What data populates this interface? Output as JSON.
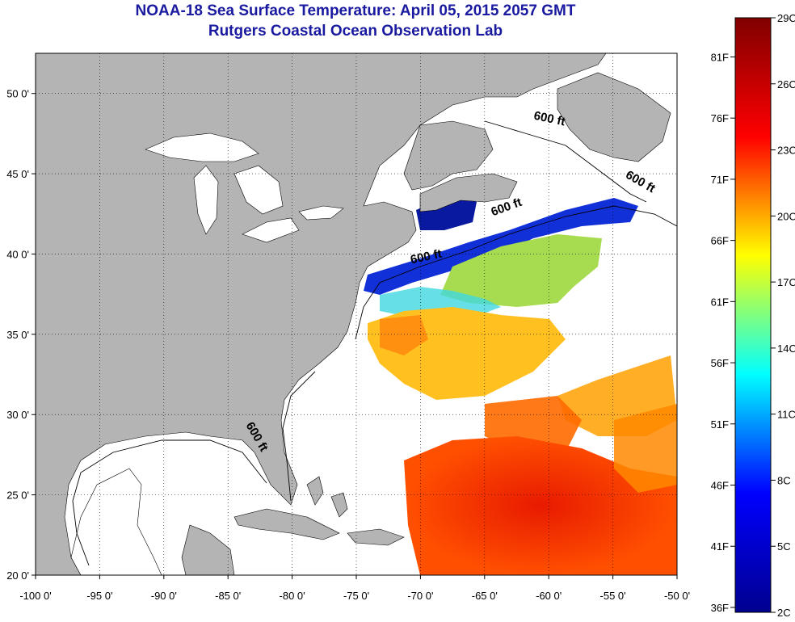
{
  "title": "NOAA-18 Sea Surface Temperature:  April 05, 2015 2057 GMT",
  "subtitle": "Rutgers Coastal Ocean Observation Lab",
  "map": {
    "lon_range": [
      -100,
      -50
    ],
    "lat_range": [
      20,
      52.5
    ],
    "lon_ticks": [
      {
        "value": -100,
        "label": "-100 0'"
      },
      {
        "value": -95,
        "label": "-95 0'"
      },
      {
        "value": -90,
        "label": "-90 0'"
      },
      {
        "value": -85,
        "label": "-85 0'"
      },
      {
        "value": -80,
        "label": "-80 0'"
      },
      {
        "value": -75,
        "label": "-75 0'"
      },
      {
        "value": -70,
        "label": "-70 0'"
      },
      {
        "value": -65,
        "label": "-65 0'"
      },
      {
        "value": -60,
        "label": "-60 0'"
      },
      {
        "value": -55,
        "label": "-55 0'"
      },
      {
        "value": -50,
        "label": "-50 0'"
      }
    ],
    "lat_ticks": [
      {
        "value": 20,
        "label": "20 0'"
      },
      {
        "value": 25,
        "label": "25 0'"
      },
      {
        "value": 30,
        "label": "30 0'"
      },
      {
        "value": 35,
        "label": "35 0'"
      },
      {
        "value": 40,
        "label": "40 0'"
      },
      {
        "value": 45,
        "label": "45 0'"
      },
      {
        "value": 50,
        "label": "50 0'"
      }
    ],
    "grid": "dotted",
    "land_color": "#b4b4b4",
    "isobath_annotations": [
      {
        "text": "600 ft",
        "lon": -60,
        "lat": 48.2,
        "rotate": 12
      },
      {
        "text": "600 ft",
        "lon": -53,
        "lat": 44.3,
        "rotate": 30
      },
      {
        "text": "600 ft",
        "lon": -63.2,
        "lat": 42.7,
        "rotate": -20
      },
      {
        "text": "600 ft",
        "lon": -69.5,
        "lat": 39.6,
        "rotate": -12
      },
      {
        "text": "600 ft",
        "lon": -83,
        "lat": 28.5,
        "rotate": 60
      }
    ]
  },
  "colorbar": {
    "celsius_labels": [
      {
        "value": 2,
        "label": "2C"
      },
      {
        "value": 5,
        "label": "5C"
      },
      {
        "value": 8,
        "label": "8C"
      },
      {
        "value": 11,
        "label": "11C"
      },
      {
        "value": 14,
        "label": "14C"
      },
      {
        "value": 17,
        "label": "17C"
      },
      {
        "value": 20,
        "label": "20C"
      },
      {
        "value": 23,
        "label": "23C"
      },
      {
        "value": 26,
        "label": "26C"
      },
      {
        "value": 29,
        "label": "29C"
      }
    ],
    "fahrenheit_labels": [
      {
        "value": 36,
        "label": "36F"
      },
      {
        "value": 41,
        "label": "41F"
      },
      {
        "value": 46,
        "label": "46F"
      },
      {
        "value": 51,
        "label": "51F"
      },
      {
        "value": 56,
        "label": "56F"
      },
      {
        "value": 61,
        "label": "61F"
      },
      {
        "value": 66,
        "label": "66F"
      },
      {
        "value": 71,
        "label": "71F"
      },
      {
        "value": 76,
        "label": "76F"
      },
      {
        "value": 81,
        "label": "81F"
      }
    ],
    "colors": [
      "#00008f",
      "#0000ff",
      "#00ffff",
      "#ffff00",
      "#ff0000",
      "#800000"
    ]
  }
}
